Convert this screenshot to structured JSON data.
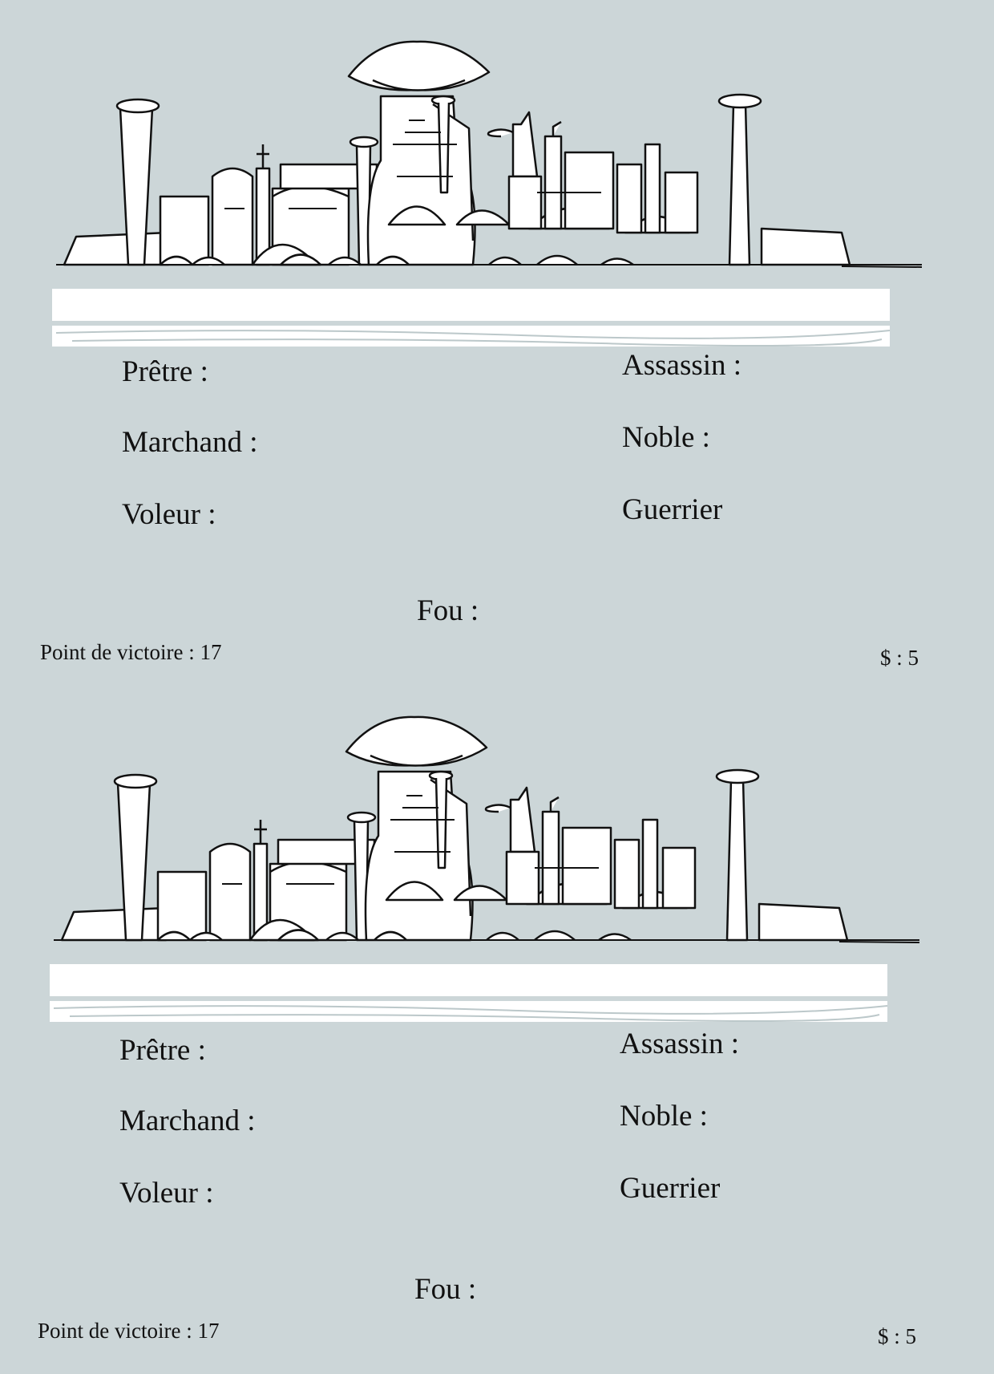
{
  "cards": [
    {
      "roles": {
        "pretre": "Prêtre :",
        "assassin": "Assassin :",
        "marchand": "Marchand :",
        "noble": "Noble :",
        "voleur": "Voleur :",
        "guerrier": "Guerrier",
        "fou": "Fou :"
      },
      "victory_points": "Point de victoire : 17",
      "money": "$ : 5"
    },
    {
      "roles": {
        "pretre": "Prêtre :",
        "assassin": "Assassin :",
        "marchand": "Marchand :",
        "noble": "Noble :",
        "voleur": "Voleur :",
        "guerrier": "Guerrier",
        "fou": "Fou :"
      },
      "victory_points": "Point de victoire : 17",
      "money": "$ : 5"
    }
  ],
  "colors": {
    "background": "#ccd6d8",
    "ink": "#111111",
    "ground": "#ffffff"
  },
  "illustration": "city-sketch"
}
